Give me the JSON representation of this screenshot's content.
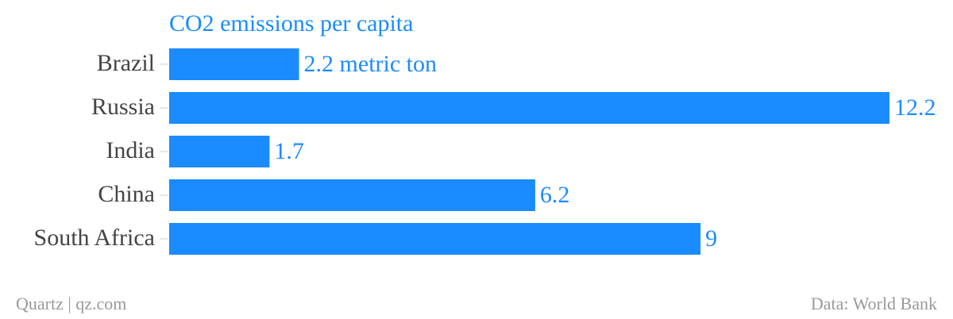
{
  "chart_data": {
    "type": "bar",
    "orientation": "horizontal",
    "title": "CO2 emissions per capita",
    "categories": [
      "Brazil",
      "Russia",
      "India",
      "China",
      "South Africa"
    ],
    "values": [
      2.2,
      12.2,
      1.7,
      6.2,
      9
    ],
    "value_labels": [
      "2.2 metric ton",
      "12.2",
      "1.7",
      "6.2",
      "9"
    ],
    "color": "#1a8cff",
    "xlim": [
      0,
      12.2
    ],
    "credit": "Quartz | qz.com",
    "source": "Data: World Bank"
  }
}
